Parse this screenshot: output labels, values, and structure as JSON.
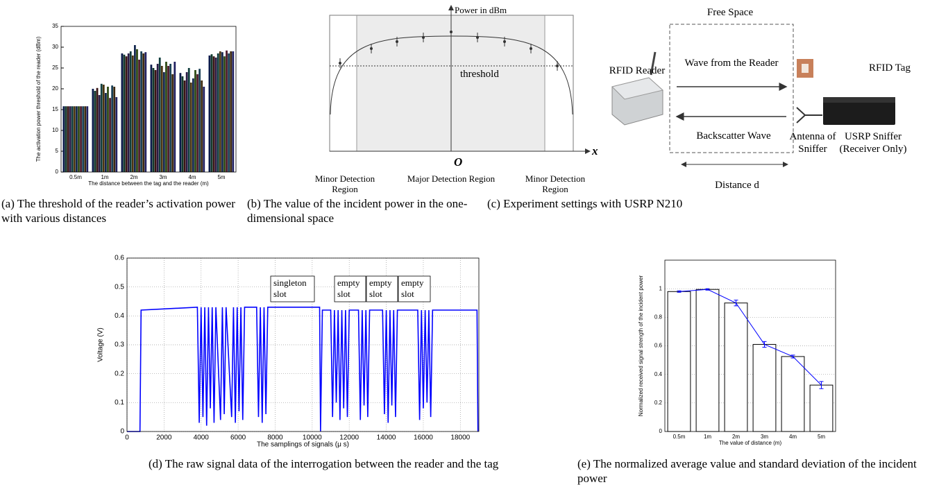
{
  "chart_data": [
    {
      "type": "grouped_bar",
      "y_label": "The activation power threshold of the reader (dBm)",
      "x_label": "The distance between the tag and the reader (m)",
      "categories": [
        "0.5m",
        "1m",
        "2m",
        "3m",
        "4m",
        "5m"
      ],
      "series": [
        {
          "color": "#0b1a4a",
          "values": [
            15.8,
            20,
            28.5,
            25.8,
            23.8,
            28
          ]
        },
        {
          "color": "#123a2c",
          "values": [
            15.8,
            19.5,
            28.2,
            25,
            23,
            28.3
          ]
        },
        {
          "color": "#3a1414",
          "values": [
            15.8,
            20.2,
            27.8,
            24.5,
            22,
            27.8
          ]
        },
        {
          "color": "#2a1a45",
          "values": [
            15.8,
            18.5,
            28.5,
            26,
            24,
            27.5
          ]
        },
        {
          "color": "#0f3d3d",
          "values": [
            15.8,
            21.2,
            29,
            27.5,
            25,
            28.5
          ]
        },
        {
          "color": "#4a3510",
          "values": [
            15.8,
            21,
            28,
            25.5,
            21.5,
            29
          ]
        },
        {
          "color": "#14284f",
          "values": [
            15.8,
            19,
            30.5,
            24,
            22.5,
            28.8
          ]
        },
        {
          "color": "#2e4a14",
          "values": [
            15.8,
            20.5,
            29.5,
            26.5,
            24.5,
            27.8
          ]
        },
        {
          "color": "#4d1a2a",
          "values": [
            15.8,
            17.8,
            27,
            25.5,
            23.5,
            29.2
          ]
        },
        {
          "color": "#1a3f55",
          "values": [
            15.8,
            20.8,
            29,
            26,
            24.8,
            28.5
          ]
        },
        {
          "color": "#3d2a0f",
          "values": [
            15.8,
            20.5,
            28.5,
            23.5,
            22,
            29
          ]
        },
        {
          "color": "#202060",
          "values": [
            15.8,
            18,
            28.8,
            26.5,
            20.5,
            29
          ]
        }
      ],
      "ylim": [
        0,
        35
      ],
      "yticks": [
        0,
        5,
        10,
        15,
        20,
        25,
        30,
        35
      ],
      "grid": false
    },
    {
      "type": "line",
      "y_label": "Voltage (V)",
      "x_label": "The samplings of signals (μ s)",
      "color": "#0000ff",
      "x": [
        0,
        700,
        760,
        3800,
        3900,
        4000,
        4100,
        4200,
        4300,
        4400,
        4500,
        4600,
        4700,
        4800,
        5050,
        5150,
        5250,
        5350,
        5650,
        5750,
        5850,
        5950,
        6050,
        6150,
        6250,
        6350,
        7000,
        7100,
        7200,
        7300,
        7400,
        7500,
        7600,
        10400,
        10450,
        10550,
        11000,
        11100,
        11200,
        11300,
        11400,
        11500,
        11600,
        11700,
        11800,
        11900,
        12000,
        12500,
        12600,
        12700,
        12800,
        12900,
        13000,
        13100,
        13800,
        13900,
        14000,
        14100,
        14200,
        14300,
        14400,
        14500,
        14600,
        15700,
        15800,
        15900,
        16000,
        16100,
        16200,
        16300,
        16400,
        16500,
        18900,
        18950
      ],
      "values": [
        0,
        0,
        0.42,
        0.43,
        0.03,
        0.43,
        0.05,
        0.43,
        0.02,
        0.43,
        0.08,
        0.43,
        0.03,
        0.43,
        0.04,
        0.43,
        0.06,
        0.43,
        0.05,
        0.43,
        0.03,
        0.43,
        0.07,
        0.43,
        0.04,
        0.43,
        0.43,
        0.05,
        0.43,
        0.03,
        0.43,
        0.06,
        0.43,
        0.43,
        0,
        0.42,
        0.42,
        0.05,
        0.42,
        0.1,
        0.42,
        0.04,
        0.42,
        0.08,
        0.42,
        0.05,
        0.42,
        0.42,
        0.04,
        0.42,
        0.09,
        0.42,
        0.05,
        0.42,
        0.42,
        0.06,
        0.42,
        0.03,
        0.42,
        0.09,
        0.42,
        0.05,
        0.42,
        0.42,
        0.04,
        0.42,
        0.08,
        0.42,
        0.1,
        0.42,
        0.05,
        0.42,
        0.42,
        0
      ],
      "xlim": [
        0,
        19000
      ],
      "xticks": [
        0,
        2000,
        4000,
        6000,
        8000,
        10000,
        12000,
        14000,
        16000,
        18000
      ],
      "ylim": [
        0,
        0.6
      ],
      "yticks": [
        0,
        0.1,
        0.2,
        0.3,
        0.4,
        0.5,
        0.6
      ],
      "grid": true,
      "annotations": [
        [
          "singleton",
          "slot"
        ],
        [
          "empty",
          "slot"
        ],
        [
          "empty",
          "slot"
        ],
        [
          "empty",
          "slot"
        ]
      ]
    },
    {
      "type": "bar_line",
      "y_label": "Normalized received signal strength of the incident power",
      "x_label": "The value of distance (m)",
      "categories": [
        "0.5m",
        "1m",
        "2m",
        "3m",
        "4m",
        "5m"
      ],
      "values": [
        0.98,
        0.995,
        0.9,
        0.61,
        0.525,
        0.325
      ],
      "errors": [
        0.005,
        0.005,
        0.02,
        0.02,
        0.01,
        0.025
      ],
      "bar_color": "#ffffff",
      "line_color": "#0000ff",
      "ylim": [
        0,
        1.2
      ],
      "yticks": [
        0,
        0.2,
        0.4,
        0.6,
        0.8,
        1
      ],
      "grid": true
    }
  ],
  "diagram_b": {
    "power_label": "Power in dBm",
    "threshold_label": "threshold",
    "x_label": "x",
    "origin_label": "O",
    "regions": [
      "Minor Detection Region",
      "Major Detection Region",
      "Minor Detection Region"
    ]
  },
  "diagram_c": {
    "free_space": "Free Space",
    "reader": "RFID Reader",
    "wave_forward": "Wave from the Reader",
    "tag": "RFID Tag",
    "wave_back": "Backscatter Wave",
    "antenna": "Antenna of Sniffer",
    "sniffer": "USRP Sniffer (Receiver Only)",
    "distance": "Distance d"
  },
  "captions": [
    "(a) The threshold of the reader’s activation power with various distances",
    "(b) The value of the incident power in the one-dimensional space",
    "(c) Experiment settings with USRP N210",
    "(d) The raw signal data of the interrogation between the reader and the tag",
    "(e) The normalized average value and standard deviation of the incident power"
  ]
}
